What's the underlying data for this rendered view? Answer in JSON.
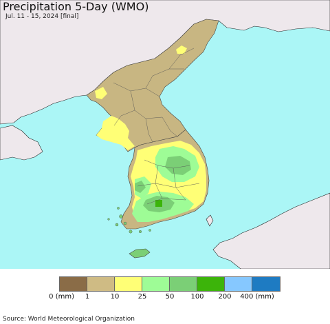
{
  "header": {
    "title": "Precipitation 5-Day (WMO)",
    "subtitle": "Jul. 11 - 15, 2024 [final]"
  },
  "legend": {
    "colors": [
      "#8a6c47",
      "#cfbb84",
      "#ffff76",
      "#9efc96",
      "#7bcf76",
      "#3cb40a",
      "#86c8ff",
      "#1e7bc2"
    ],
    "ticks": [
      "0 (mm)",
      "1",
      "10",
      "25",
      "50",
      "100",
      "200",
      "400 (mm)"
    ]
  },
  "footer": {
    "source": "Source: World Meteorological Organization"
  },
  "map_colors": {
    "sea": "#abf6f6",
    "foreign_land": "#eee8ec",
    "dry": "#c8b682",
    "light": "#ffff76",
    "moderate": "#9efc96",
    "heavy": "#7bcf76",
    "very_heavy": "#3cb40a"
  }
}
